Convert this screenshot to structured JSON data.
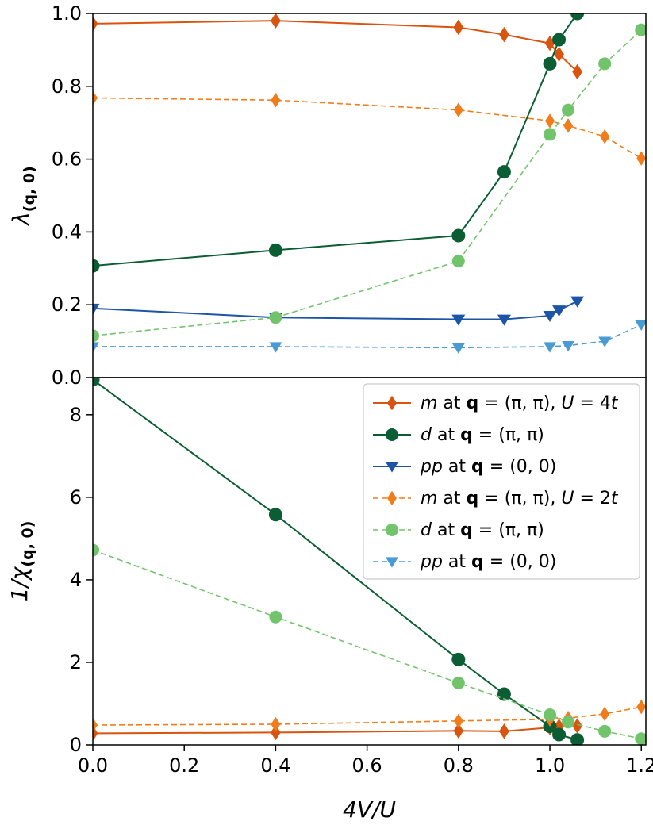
{
  "colors": {
    "m_U4": "#d9540f",
    "d_U4": "#0b5e34",
    "pp_U4": "#1d55a6",
    "m_U2": "#f07c1a",
    "d_U2": "#72c46c",
    "pp_U2": "#4a9bd4"
  },
  "chart_data": [
    {
      "type": "line",
      "panel": "top",
      "ylabel": "λ_(q, 0)",
      "ylabel_main": "λ",
      "ylabel_sub": "(q, 0)",
      "xlim": [
        0.0,
        1.21
      ],
      "ylim": [
        0.0,
        1.0
      ],
      "yticks": [
        "0.0",
        "0.2",
        "0.4",
        "0.6",
        "0.8",
        "1.0"
      ],
      "grid": false,
      "series": [
        {
          "key": "m_U4",
          "marker": "diamond",
          "dashed": false,
          "x": [
            0.0,
            0.4,
            0.8,
            0.9,
            1.0,
            1.02,
            1.06
          ],
          "y": [
            0.972,
            0.98,
            0.962,
            0.942,
            0.918,
            0.888,
            0.84
          ]
        },
        {
          "key": "d_U4",
          "marker": "circle",
          "dashed": false,
          "x": [
            0.0,
            0.4,
            0.8,
            0.9,
            1.0,
            1.02,
            1.06
          ],
          "y": [
            0.307,
            0.35,
            0.39,
            0.565,
            0.862,
            0.928,
            1.0
          ]
        },
        {
          "key": "pp_U4",
          "marker": "triangle-down",
          "dashed": false,
          "x": [
            0.0,
            0.4,
            0.8,
            0.9,
            1.0,
            1.02,
            1.06
          ],
          "y": [
            0.19,
            0.165,
            0.16,
            0.16,
            0.17,
            0.185,
            0.21
          ]
        },
        {
          "key": "m_U2",
          "marker": "diamond",
          "dashed": true,
          "x": [
            0.0,
            0.4,
            0.8,
            1.0,
            1.04,
            1.12,
            1.2
          ],
          "y": [
            0.768,
            0.762,
            0.735,
            0.705,
            0.692,
            0.662,
            0.602
          ]
        },
        {
          "key": "d_U2",
          "marker": "circle",
          "dashed": true,
          "x": [
            0.0,
            0.4,
            0.8,
            1.0,
            1.04,
            1.12,
            1.2
          ],
          "y": [
            0.115,
            0.165,
            0.32,
            0.668,
            0.735,
            0.862,
            0.955
          ]
        },
        {
          "key": "pp_U2",
          "marker": "triangle-down",
          "dashed": true,
          "x": [
            0.0,
            0.4,
            0.8,
            1.0,
            1.04,
            1.12,
            1.2
          ],
          "y": [
            0.085,
            0.085,
            0.082,
            0.085,
            0.088,
            0.1,
            0.145
          ]
        }
      ]
    },
    {
      "type": "line",
      "panel": "bottom",
      "xlabel": "4V/U",
      "ylabel": "1/χ_(q, 0)",
      "ylabel_main": "1/χ",
      "ylabel_sub": "(q, 0)",
      "xlim": [
        0.0,
        1.21
      ],
      "ylim": [
        0.0,
        8.9
      ],
      "xticks": [
        "0.0",
        "0.2",
        "0.4",
        "0.6",
        "0.8",
        "1.0",
        "1.2"
      ],
      "yticks": [
        "0",
        "2",
        "4",
        "6",
        "8"
      ],
      "grid": false,
      "legend_placement": "upper right",
      "series": [
        {
          "key": "m_U4",
          "marker": "diamond",
          "dashed": false,
          "x": [
            0.0,
            0.4,
            0.8,
            0.9,
            1.0,
            1.02,
            1.06
          ],
          "y": [
            0.28,
            0.3,
            0.34,
            0.33,
            0.42,
            0.45,
            0.46
          ]
        },
        {
          "key": "d_U4",
          "marker": "circle",
          "dashed": false,
          "x": [
            0.0,
            0.4,
            0.8,
            0.9,
            1.0,
            1.02,
            1.06
          ],
          "y": [
            8.85,
            5.58,
            2.07,
            1.23,
            0.45,
            0.25,
            0.12
          ]
        },
        {
          "key": "m_U2",
          "marker": "diamond",
          "dashed": true,
          "x": [
            0.0,
            0.4,
            0.8,
            1.0,
            1.04,
            1.12,
            1.2
          ],
          "y": [
            0.48,
            0.5,
            0.58,
            0.62,
            0.65,
            0.75,
            0.92
          ]
        },
        {
          "key": "d_U2",
          "marker": "circle",
          "dashed": true,
          "x": [
            0.0,
            0.4,
            0.8,
            1.0,
            1.04,
            1.12,
            1.2
          ],
          "y": [
            4.72,
            3.1,
            1.5,
            0.73,
            0.55,
            0.33,
            0.15
          ]
        }
      ]
    }
  ],
  "legend": [
    {
      "key": "m_U4",
      "marker": "diamond",
      "dashed": false,
      "name": "m",
      "q": "(π, π)",
      "U": "4t"
    },
    {
      "key": "d_U4",
      "marker": "circle",
      "dashed": false,
      "name": "d",
      "q": "(π, π)"
    },
    {
      "key": "pp_U4",
      "marker": "triangle-down",
      "dashed": false,
      "name": "pp",
      "q": "(0, 0)"
    },
    {
      "key": "m_U2",
      "marker": "diamond",
      "dashed": true,
      "name": "m",
      "q": "(π, π)",
      "U": "2t"
    },
    {
      "key": "d_U2",
      "marker": "circle",
      "dashed": true,
      "name": "d",
      "q": "(π, π)"
    },
    {
      "key": "pp_U2",
      "marker": "triangle-down",
      "dashed": true,
      "name": "pp",
      "q": "(0, 0)"
    }
  ]
}
